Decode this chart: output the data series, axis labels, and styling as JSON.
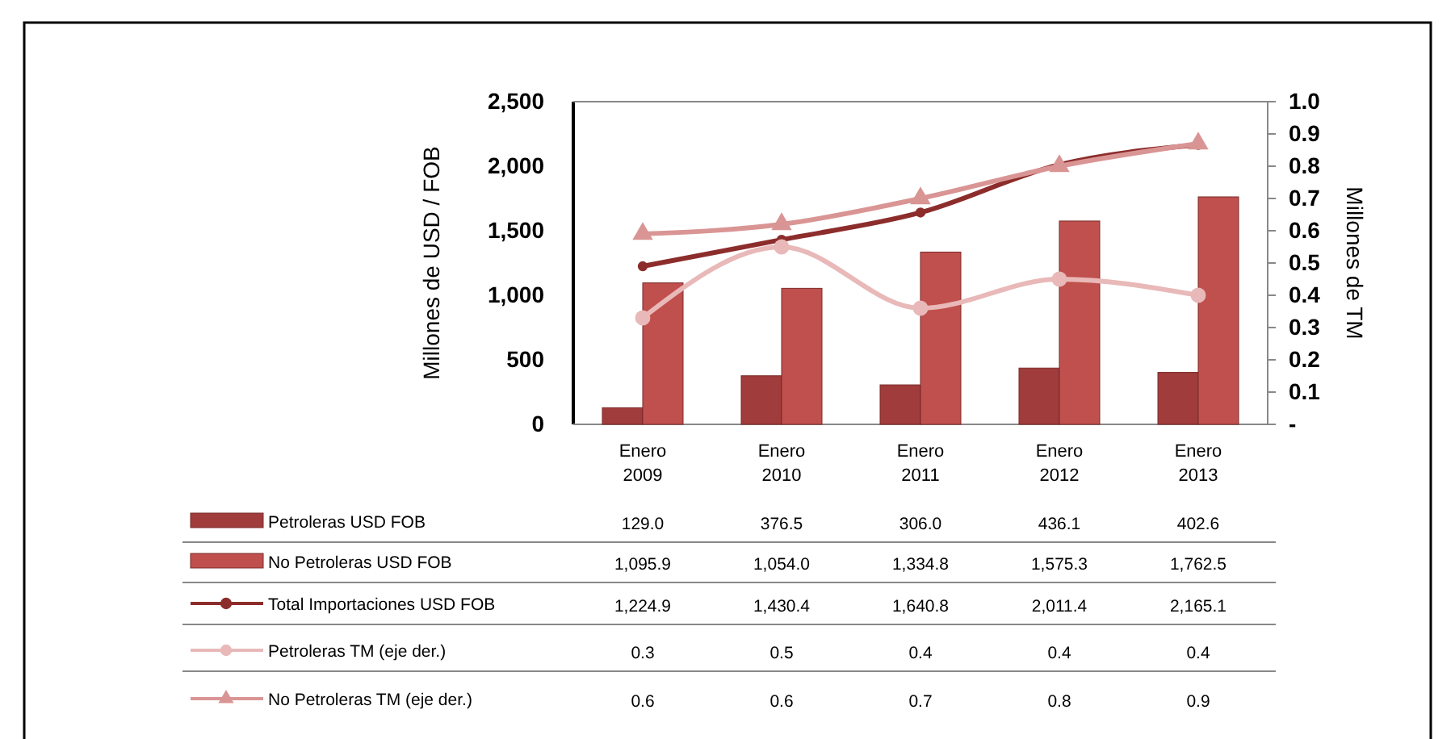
{
  "chart_data": {
    "type": "bar",
    "categories": [
      "Enero 2009",
      "Enero 2010",
      "Enero 2011",
      "Enero 2012",
      "Enero 2013"
    ],
    "ylabel": "Millones de USD / FOB",
    "y2label": "Millones de TM",
    "ylim": [
      0,
      2500
    ],
    "yticks": [
      0,
      500,
      {
        "value": 1000,
        "label": "1,000"
      },
      {
        "value": 1500,
        "label": "1,500"
      },
      {
        "value": 2000,
        "label": "2,000"
      },
      {
        "value": 2500,
        "label": "2,500"
      }
    ],
    "y2lim": [
      0,
      1
    ],
    "y2ticks": [
      {
        "value": 0,
        "label": "-"
      },
      0.1,
      0.2,
      0.3,
      0.4,
      0.5,
      0.6,
      0.7,
      0.8,
      0.9,
      {
        "value": 1,
        "label": "1.0"
      }
    ],
    "legend": "bottom",
    "grid": false,
    "series": [
      {
        "name": "Petroleras USD FOB",
        "color": "#a03c3b",
        "values": [
          129.0,
          376.5,
          306.0,
          436.1,
          402.6
        ],
        "value_labels": [
          "129.0",
          "376.5",
          "306.0",
          "436.1",
          "402.6"
        ]
      },
      {
        "name": "No Petroleras USD FOB",
        "color": "#c0504d",
        "values": [
          1095.9,
          1054.0,
          1334.8,
          1575.3,
          1762.5
        ],
        "value_labels": [
          "1,095.9",
          "1,054.0",
          "1,334.8",
          "1,575.3",
          "1,762.5"
        ]
      },
      {
        "name": "Total Importaciones USD FOB",
        "type": "line",
        "color": "#8c2d2c",
        "marker": "circle",
        "values": [
          1224.9,
          1430.4,
          1640.8,
          2011.4,
          2165.1
        ],
        "value_labels": [
          "1,224.9",
          "1,430.4",
          "1,640.8",
          "2,011.4",
          "2,165.1"
        ]
      },
      {
        "name": "Petroleras TM (eje der.)",
        "type": "line",
        "axis": "y2",
        "color": "#e8b9b8",
        "marker": "circle",
        "values": [
          0.33,
          0.55,
          0.36,
          0.45,
          0.4
        ],
        "value_labels": [
          "0.3",
          "0.5",
          "0.4",
          "0.4",
          "0.4"
        ]
      },
      {
        "name": "No Petroleras TM (eje der.)",
        "type": "line",
        "axis": "y2",
        "color": "#d99594",
        "marker": "triangle",
        "values": [
          0.59,
          0.62,
          0.7,
          0.8,
          0.87
        ],
        "value_labels": [
          "0.6",
          "0.6",
          "0.7",
          "0.8",
          "0.9"
        ]
      }
    ]
  }
}
